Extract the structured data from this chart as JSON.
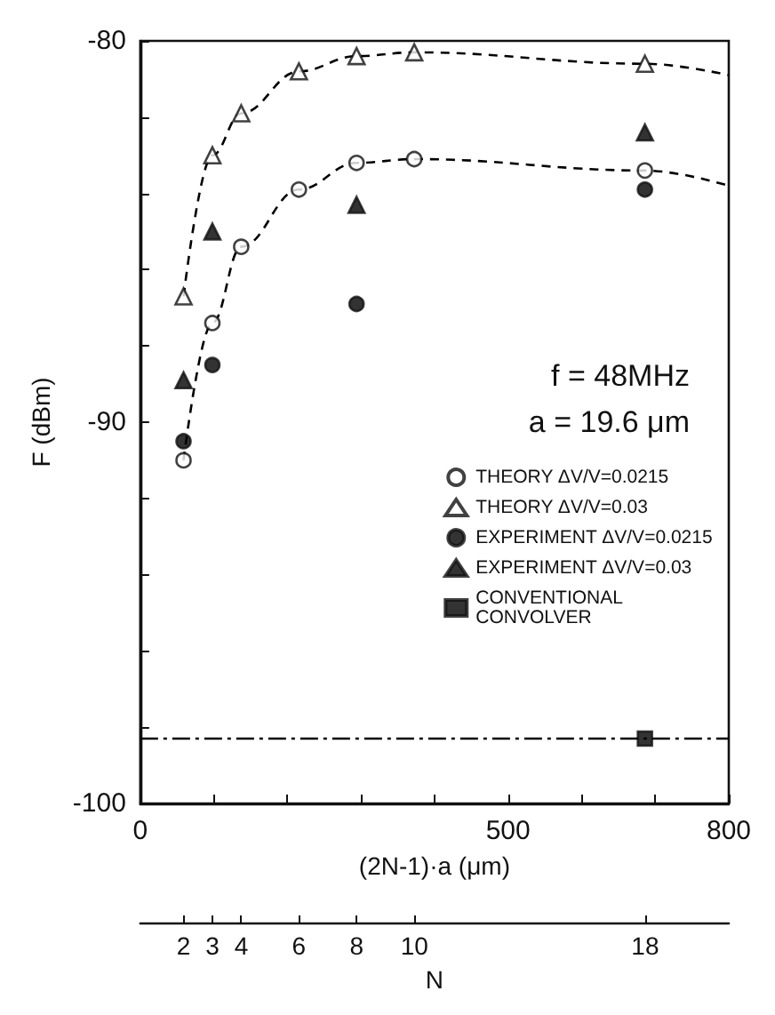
{
  "chart_data": {
    "type": "scatter",
    "xlabel": "(2N-1)·a (μm)",
    "ylabel": "F (dBm)",
    "x2label": "N",
    "xlim": [
      0,
      800
    ],
    "xticks": [
      0,
      {
        "value": 100,
        "label": null
      },
      {
        "value": 200,
        "label": null
      },
      {
        "value": 300,
        "label": null
      },
      {
        "value": 400,
        "label": null
      },
      500,
      {
        "value": 600,
        "label": null
      },
      {
        "value": 700,
        "label": null
      },
      800
    ],
    "ylim": [
      -100,
      -80
    ],
    "yticks": [
      -100,
      {
        "value": -98,
        "label": null
      },
      {
        "value": -96,
        "label": null
      },
      {
        "value": -94,
        "label": null
      },
      {
        "value": -92,
        "label": null
      },
      -90,
      {
        "value": -88,
        "label": null
      },
      {
        "value": -86,
        "label": null
      },
      {
        "value": -84,
        "label": null
      },
      {
        "value": -82,
        "label": null
      },
      -80
    ],
    "x2lim": [
      0.5,
      20.9
    ],
    "x2ticks": [
      2,
      3,
      4,
      6,
      8,
      10,
      18
    ],
    "grid": false,
    "legend": "right",
    "annotations": [
      "f = 48MHz",
      "a = 19.6 μm"
    ],
    "ref_lines": [
      {
        "axis": "y",
        "value": -98.3,
        "label": null,
        "color": "#000000",
        "line_style": "dashed"
      }
    ],
    "series": [
      {
        "name": "THEORY ΔV/V=0.0215",
        "marker": "circle",
        "color": "#ffffff",
        "x": [
          58.8,
          98,
          137.2,
          215.6,
          294,
          372.4,
          686
        ],
        "values": [
          -91.0,
          -87.4,
          -85.4,
          -83.9,
          -83.2,
          -83.1,
          -83.4
        ]
      },
      {
        "name": "THEORY ΔV/V=0.03",
        "marker": "triangle",
        "color": "#ffffff",
        "x": [
          58.8,
          98,
          137.2,
          215.6,
          294,
          372.4,
          686
        ],
        "values": [
          -86.7,
          -83.0,
          -81.9,
          -80.8,
          -80.4,
          -80.3,
          -80.6
        ]
      },
      {
        "name": "EXPERIMENT ΔV/V=0.0215",
        "marker": "circle",
        "color": "#000000",
        "x": [
          58.8,
          98,
          294,
          686
        ],
        "values": [
          -90.5,
          -88.5,
          -86.9,
          -83.9
        ]
      },
      {
        "name": "EXPERIMENT ΔV/V=0.03",
        "marker": "triangle",
        "color": "#000000",
        "x": [
          58.8,
          98,
          294,
          686
        ],
        "values": [
          -88.9,
          -85.0,
          -84.3,
          -82.4
        ]
      },
      {
        "name": "CONVENTIONAL\nCONVOLVER",
        "marker": "square",
        "color": "#000000",
        "x": [
          686
        ],
        "values": [
          -98.3
        ]
      },
      {
        "type": "line",
        "marker": "none",
        "line_style": "dashed",
        "color": "#000000",
        "x": [
          58.8,
          98,
          137.2,
          215.6,
          294,
          372.4,
          686,
          800
        ],
        "values": [
          -91.0,
          -87.4,
          -85.4,
          -83.9,
          -83.2,
          -83.1,
          -83.4,
          -83.8
        ]
      },
      {
        "type": "line",
        "marker": "none",
        "line_style": "dashed",
        "color": "#000000",
        "x": [
          58.8,
          98,
          137.2,
          215.6,
          294,
          372.4,
          686,
          800
        ],
        "values": [
          -86.7,
          -83.0,
          -81.9,
          -80.8,
          -80.4,
          -80.3,
          -80.6,
          -80.9
        ]
      }
    ]
  }
}
